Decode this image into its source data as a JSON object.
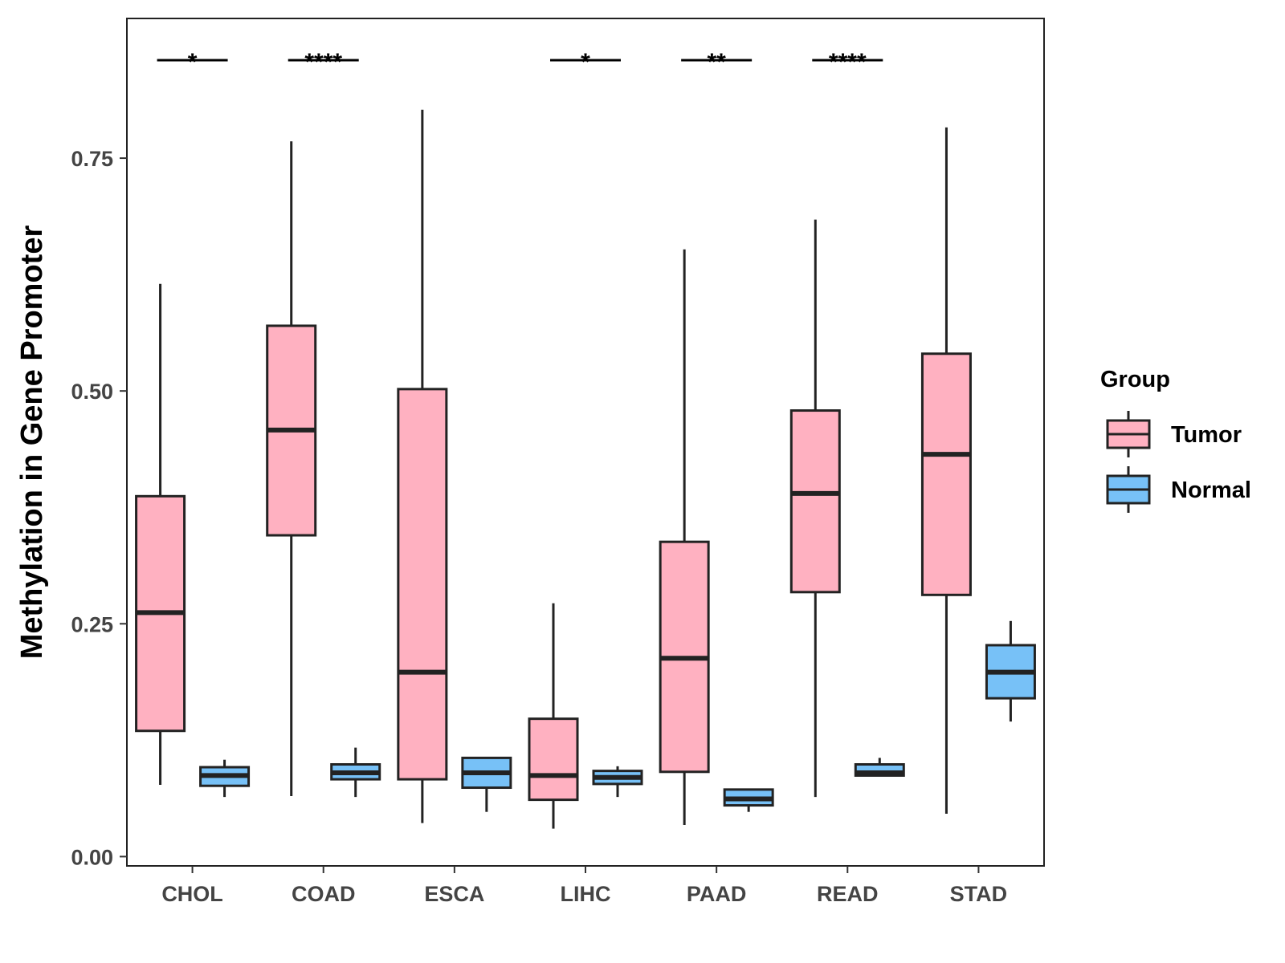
{
  "chart_data": {
    "type": "boxplot",
    "title": "",
    "xlabel": "",
    "ylabel": "Methylation in Gene Promoter",
    "ylim": [
      -0.01,
      0.9
    ],
    "yticks": [
      {
        "value": 0.0,
        "label": "0.00"
      },
      {
        "value": 0.25,
        "label": "0.25"
      },
      {
        "value": 0.5,
        "label": "0.50"
      },
      {
        "value": 0.75,
        "label": "0.75"
      }
    ],
    "categories": [
      "CHOL",
      "COAD",
      "ESCA",
      "LIHC",
      "PAAD",
      "READ",
      "STAD"
    ],
    "legend": {
      "title": "Group",
      "position": "right",
      "entries": [
        {
          "name": "Tumor",
          "color": "#FFB1C1"
        },
        {
          "name": "Normal",
          "color": "#77C1F7"
        }
      ]
    },
    "series": [
      {
        "name": "Tumor",
        "color": "#FFB1C1",
        "boxes": [
          {
            "min": 0.077,
            "q1": 0.135,
            "median": 0.262,
            "q3": 0.387,
            "max": 0.615
          },
          {
            "min": 0.065,
            "q1": 0.345,
            "median": 0.458,
            "q3": 0.57,
            "max": 0.768
          },
          {
            "min": 0.036,
            "q1": 0.083,
            "median": 0.198,
            "q3": 0.502,
            "max": 0.802
          },
          {
            "min": 0.03,
            "q1": 0.061,
            "median": 0.087,
            "q3": 0.148,
            "max": 0.272
          },
          {
            "min": 0.034,
            "q1": 0.091,
            "median": 0.213,
            "q3": 0.338,
            "max": 0.652
          },
          {
            "min": 0.064,
            "q1": 0.284,
            "median": 0.39,
            "q3": 0.479,
            "max": 0.684
          },
          {
            "min": 0.046,
            "q1": 0.281,
            "median": 0.432,
            "q3": 0.54,
            "max": 0.783
          }
        ]
      },
      {
        "name": "Normal",
        "color": "#77C1F7",
        "boxes": [
          {
            "min": 0.064,
            "q1": 0.076,
            "median": 0.087,
            "q3": 0.096,
            "max": 0.104
          },
          {
            "min": 0.064,
            "q1": 0.083,
            "median": 0.09,
            "q3": 0.099,
            "max": 0.117
          },
          {
            "min": 0.048,
            "q1": 0.074,
            "median": 0.09,
            "q3": 0.106,
            "max": 0.106
          },
          {
            "min": 0.064,
            "q1": 0.078,
            "median": 0.085,
            "q3": 0.092,
            "max": 0.097
          },
          {
            "min": 0.048,
            "q1": 0.055,
            "median": 0.062,
            "q3": 0.072,
            "max": 0.072
          },
          {
            "min": 0.087,
            "q1": 0.087,
            "median": 0.09,
            "q3": 0.099,
            "max": 0.106
          },
          {
            "min": 0.145,
            "q1": 0.17,
            "median": 0.198,
            "q3": 0.227,
            "max": 0.253
          }
        ]
      }
    ],
    "significance": [
      {
        "category": "CHOL",
        "label": "*"
      },
      {
        "category": "COAD",
        "label": "****"
      },
      {
        "category": "LIHC",
        "label": "*"
      },
      {
        "category": "PAAD",
        "label": "**"
      },
      {
        "category": "READ",
        "label": "****"
      }
    ]
  }
}
